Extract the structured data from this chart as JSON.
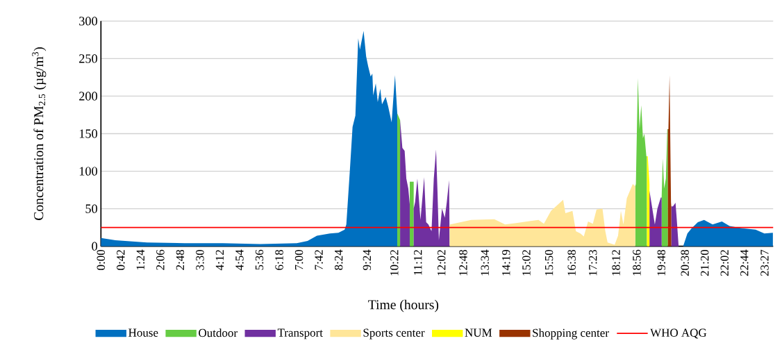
{
  "chart_data": {
    "type": "area",
    "xlabel": "Time (hours)",
    "ylabel": "Concentration of PM$_{2.5}$ (µg/m$^{3}$)",
    "xlim": [
      0,
      23.75
    ],
    "ylim": [
      0,
      300
    ],
    "xticks": [
      {
        "value": 0,
        "label": "0:00"
      },
      {
        "value": 0.7,
        "label": "0:42"
      },
      {
        "value": 1.4,
        "label": "1:24"
      },
      {
        "value": 2.1,
        "label": "2:06"
      },
      {
        "value": 2.8,
        "label": "2:48"
      },
      {
        "value": 3.5,
        "label": "3:30"
      },
      {
        "value": 4.2,
        "label": "4:12"
      },
      {
        "value": 4.9,
        "label": "4:54"
      },
      {
        "value": 5.6,
        "label": "5:36"
      },
      {
        "value": 6.3,
        "label": "6:18"
      },
      {
        "value": 7.0,
        "label": "7:00"
      },
      {
        "value": 7.7,
        "label": "7:42"
      },
      {
        "value": 8.4,
        "label": "8:24"
      },
      {
        "value": 9.4,
        "label": "9:24"
      },
      {
        "value": 10.367,
        "label": "10:22"
      },
      {
        "value": 11.2,
        "label": "11:12"
      },
      {
        "value": 12.033,
        "label": "12:02"
      },
      {
        "value": 12.8,
        "label": "12:48"
      },
      {
        "value": 13.567,
        "label": "13:34"
      },
      {
        "value": 14.317,
        "label": "14:19"
      },
      {
        "value": 15.033,
        "label": "15:02"
      },
      {
        "value": 15.833,
        "label": "15:50"
      },
      {
        "value": 16.633,
        "label": "16:38"
      },
      {
        "value": 17.383,
        "label": "17:23"
      },
      {
        "value": 18.2,
        "label": "18:12"
      },
      {
        "value": 18.933,
        "label": "18:56"
      },
      {
        "value": 19.8,
        "label": "19:48"
      },
      {
        "value": 20.633,
        "label": "20:38"
      },
      {
        "value": 21.333,
        "label": "21:20"
      },
      {
        "value": 22.033,
        "label": "22:02"
      },
      {
        "value": 22.733,
        "label": "22:44"
      },
      {
        "value": 23.45,
        "label": "23:27"
      }
    ],
    "yticks": [
      0,
      50,
      100,
      150,
      200,
      250,
      300
    ],
    "grid": "y",
    "legend": "bottom",
    "ref_lines": [
      {
        "axis": "y",
        "value": 25,
        "label": "WHO AQG",
        "color": "#ff0000"
      }
    ],
    "series": [
      {
        "name": "House",
        "color": "#0070c0",
        "x": [
          0,
          0.51,
          1.63,
          2.96,
          4.3,
          5.63,
          6.92,
          7.3,
          7.63,
          8.09,
          8.39,
          8.61,
          8.67,
          8.8,
          8.89,
          8.99,
          9.09,
          9.15,
          9.28,
          9.37,
          9.44,
          9.53,
          9.59,
          9.62,
          9.71,
          9.78,
          9.87,
          9.93,
          10.06,
          10.15,
          10.27,
          10.39,
          10.47,
          15.0,
          20.57,
          20.72,
          20.87,
          21.09,
          21.31,
          21.61,
          21.94,
          22.21,
          22.66,
          23.13,
          23.44,
          23.74
        ],
        "values": [
          11,
          8,
          5,
          4,
          4,
          3,
          4,
          7,
          14,
          17,
          18,
          22,
          29,
          104,
          159,
          174,
          277,
          262,
          287,
          253,
          240,
          226,
          230,
          201,
          217,
          192,
          210,
          189,
          199,
          186,
          165,
          228,
          177,
          null,
          0,
          17,
          24,
          32,
          35,
          29,
          33,
          27,
          24,
          22,
          17,
          18
        ]
      },
      {
        "name": "Outdoor",
        "color": "#66cc44",
        "x": [
          10.47,
          10.57,
          10.8,
          10.91,
          11.05,
          15.0,
          18.88,
          18.9,
          18.97,
          19.03,
          19.09,
          19.15,
          19.2,
          19.27,
          19.29,
          19.5,
          19.81,
          19.85,
          19.9,
          19.96,
          20.01,
          20.03
        ],
        "values": [
          177,
          168,
          null,
          86,
          86,
          null,
          80,
          83,
          224,
          156,
          188,
          144,
          150,
          120,
          120,
          null,
          65,
          117,
          77,
          90,
          156,
          156
        ]
      },
      {
        "name": "Transport",
        "color": "#7030a0",
        "x": [
          10.57,
          10.65,
          10.73,
          10.79,
          10.86,
          10.91,
          11.0,
          11.05,
          11.1,
          11.18,
          11.29,
          11.42,
          11.49,
          11.57,
          11.68,
          11.76,
          11.84,
          11.89,
          11.94,
          12.05,
          12.15,
          12.22,
          12.3,
          12.32,
          15.0,
          19.38,
          19.57,
          19.66,
          19.78,
          19.81,
          20.0,
          20.15,
          20.21,
          20.3,
          20.34,
          20.41
        ],
        "values": [
          168,
          131,
          127,
          90,
          77,
          56,
          null,
          50,
          59,
          90,
          35,
          92,
          32,
          29,
          20,
          90,
          129,
          74,
          8,
          50,
          38,
          59,
          88,
          2,
          null,
          74,
          29,
          50,
          65,
          65,
          null,
          53,
          53,
          58,
          38,
          0
        ]
      },
      {
        "name": "Sports center",
        "color": "#ffe699",
        "x": [
          12.32,
          12.34,
          13.08,
          13.9,
          14.28,
          14.67,
          15.46,
          15.65,
          15.9,
          16.33,
          16.41,
          16.66,
          16.78,
          16.94,
          17.06,
          17.21,
          17.38,
          17.51,
          17.72,
          17.82,
          17.9,
          18.15,
          18.27,
          18.37,
          18.46,
          18.58,
          18.79,
          18.88
        ],
        "values": [
          29,
          29,
          35,
          36,
          29,
          31,
          35,
          30,
          47,
          62,
          44,
          47,
          20,
          17,
          13,
          33,
          30,
          49,
          50,
          20,
          5,
          2,
          14,
          47,
          29,
          64,
          83,
          80
        ]
      },
      {
        "name": "NUM",
        "color": "#ffff00",
        "x": [
          19.29,
          19.32,
          19.38
        ],
        "values": [
          120,
          120,
          83
        ]
      },
      {
        "name": "Shopping center",
        "color": "#993300",
        "x": [
          20.03,
          20.05,
          20.09,
          20.14,
          20.15
        ],
        "values": [
          156,
          156,
          228,
          59,
          53
        ]
      }
    ]
  }
}
